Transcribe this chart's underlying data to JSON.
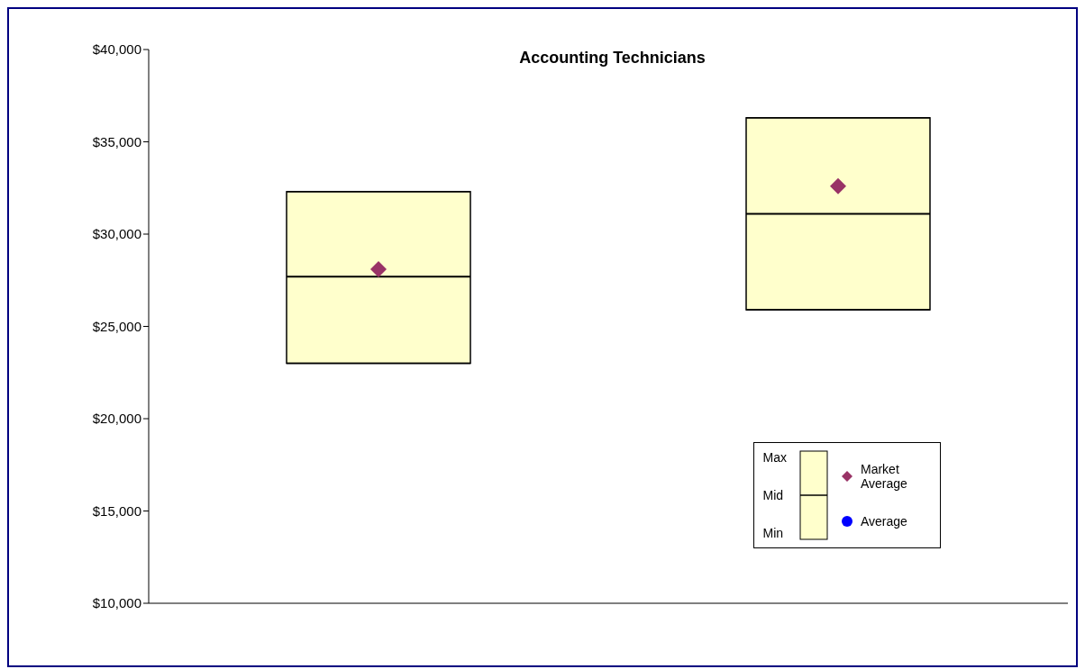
{
  "chart_data": {
    "type": "box",
    "title": "Accounting Technicians",
    "categories": [
      null,
      null
    ],
    "boxes": [
      {
        "low": 23000,
        "q1": 23000,
        "median": 27700,
        "q3": 32300,
        "high": 32300
      },
      {
        "low": 25900,
        "q1": 25900,
        "median": 31100,
        "q3": 36300,
        "high": 36300
      }
    ],
    "color": "#ffffcc",
    "series": [
      {
        "name": "Market Average",
        "type": "scatter",
        "marker": "diamond",
        "color": "#993366",
        "values": [
          28100,
          32600
        ]
      },
      {
        "name": "Average",
        "type": "scatter",
        "marker": "circle",
        "color": "#0000ff",
        "values": [
          null,
          null
        ]
      }
    ],
    "ylim": [
      10000,
      40000
    ],
    "yticks": [
      {
        "value": 10000,
        "label": "$10,000"
      },
      {
        "value": 15000,
        "label": "$15,000"
      },
      {
        "value": 20000,
        "label": "$20,000"
      },
      {
        "value": 25000,
        "label": "$25,000"
      },
      {
        "value": 30000,
        "label": "$30,000"
      },
      {
        "value": 35000,
        "label": "$35,000"
      },
      {
        "value": 40000,
        "label": "$40,000"
      }
    ],
    "annotations": [
      "Max",
      "Mid",
      "Min"
    ],
    "legend": "bottom right",
    "grid": false
  }
}
